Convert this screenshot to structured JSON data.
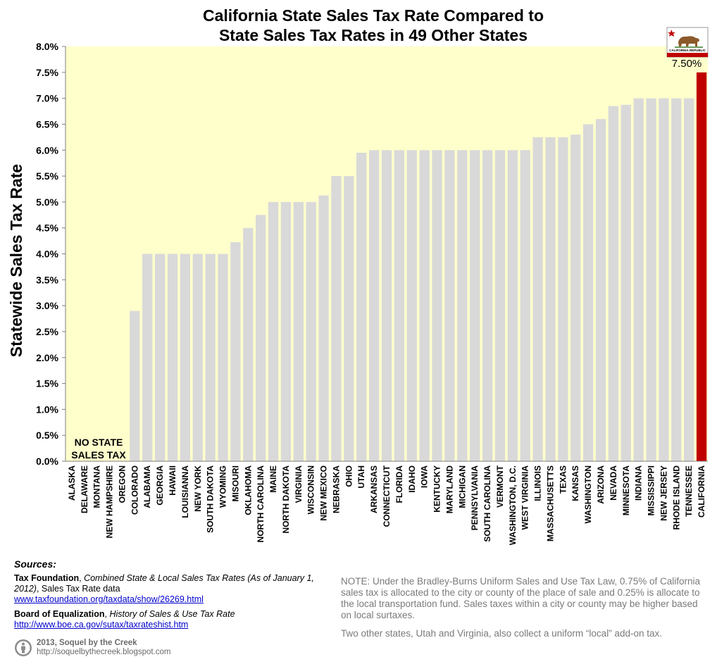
{
  "chart_data": {
    "type": "bar",
    "title": "California State Sales Tax Rate Compared to State Sales Tax Rates in 49 Other States",
    "title_lines": [
      "California State Sales Tax Rate Compared to",
      "State Sales Tax Rates in 49 Other States"
    ],
    "ylabel": "Statewide Sales Tax Rate",
    "xlabel": "",
    "ylim": [
      0,
      8.0
    ],
    "yticks": [
      0,
      0.5,
      1.0,
      1.5,
      2.0,
      2.5,
      3.0,
      3.5,
      4.0,
      4.5,
      5.0,
      5.5,
      6.0,
      6.5,
      7.0,
      7.5,
      8.0
    ],
    "ytick_labels": [
      "0.0%",
      "0.5%",
      "1.0%",
      "1.5%",
      "2.0%",
      "2.5%",
      "3.0%",
      "3.5%",
      "4.0%",
      "4.5%",
      "5.0%",
      "5.5%",
      "6.0%",
      "6.5%",
      "7.0%",
      "7.5%",
      "8.0%"
    ],
    "grid": false,
    "categories": [
      "ALASKA",
      "DELAWARE",
      "MONTANA",
      "NEW HAMPSHIRE",
      "OREGON",
      "COLORADO",
      "ALABAMA",
      "GEORGIA",
      "HAWAII",
      "LOUISIANNA",
      "NEW YORK",
      "SOUTH DAKOTA",
      "WYOMING",
      "MISOURI",
      "OKLAHOMA",
      "NORTH CAROLINA",
      "MAINE",
      "NORTH DAKOTA",
      "VIRGINIA",
      "WISCONSIN",
      "NEW MEXICO",
      "NEBRASKA",
      "OHIO",
      "UTAH",
      "ARKANSAS",
      "CONNECTICUT",
      "FLORIDA",
      "IDAHO",
      "IOWA",
      "KENTUCKY",
      "MARYLAND",
      "MICHIGAN",
      "PENNSYLVANIA",
      "SOUTH CAROLINA",
      "VERMONT",
      "WASHINGTON, D.C.",
      "WEST VIRGINIA",
      "ILLINOIS",
      "MASSACHUSETTS",
      "TEXAS",
      "KANSAS",
      "WASHINGTON",
      "ARIZONA",
      "NEVADA",
      "MINNESOTA",
      "INDIANA",
      "MISSISSIPPI",
      "NEW JERSEY",
      "RHODE ISLAND",
      "TENNESSEE",
      "CALIFORNIA"
    ],
    "values": [
      0,
      0,
      0,
      0,
      0,
      2.9,
      4.0,
      4.0,
      4.0,
      4.0,
      4.0,
      4.0,
      4.0,
      4.225,
      4.5,
      4.75,
      5.0,
      5.0,
      5.0,
      5.0,
      5.125,
      5.5,
      5.5,
      5.95,
      6.0,
      6.0,
      6.0,
      6.0,
      6.0,
      6.0,
      6.0,
      6.0,
      6.0,
      6.0,
      6.0,
      6.0,
      6.0,
      6.25,
      6.25,
      6.25,
      6.3,
      6.5,
      6.6,
      6.85,
      6.875,
      7.0,
      7.0,
      7.0,
      7.0,
      7.0,
      7.5
    ],
    "highlight_category": "CALIFORNIA",
    "highlight_label": "7.50%",
    "no_tax_label_lines": [
      "NO STATE",
      "SALES TAX"
    ],
    "flag_caption": "CALIFORNIA REPUBLIC",
    "colors": {
      "plot_bg": "#ffffcc",
      "bar": "#d9d9d9",
      "highlight": "#c00000",
      "axis": "#7f7f7f"
    }
  },
  "sources": {
    "heading": "Sources:",
    "tf_name": "Tax Foundation",
    "tf_sep": ", ",
    "tf_title": "Combined State & Local Sales Tax Rates (As of January 1, 2012)",
    "tf_rest": ", Sales Tax Rate data",
    "tf_link": "www.taxfoundation.org/taxdata/show/26269.html",
    "boe_name": "Board of Equalization",
    "boe_sep": ", ",
    "boe_title": "History of Sales & Use Tax Rate",
    "boe_link": "http://www.boe.ca.gov/sutax/taxrateshist.htm"
  },
  "note": {
    "text1": "NOTE:  Under the Bradley-Burns Uniform Sales and Use Tax Law, 0.75% of California sales tax is allocated to the city or county of the place of sale and 0.25% is allocate to the local transportation fund.  Sales taxes within a city or county may be higher based on local surtaxes.",
    "text2": "Two other states, Utah and Virginia, also collect a uniform “local” add-on tax."
  },
  "credit": {
    "line1": "2013, Soquel by the Creek",
    "line2": "http://soquelbythecreek.blogspot.com"
  }
}
